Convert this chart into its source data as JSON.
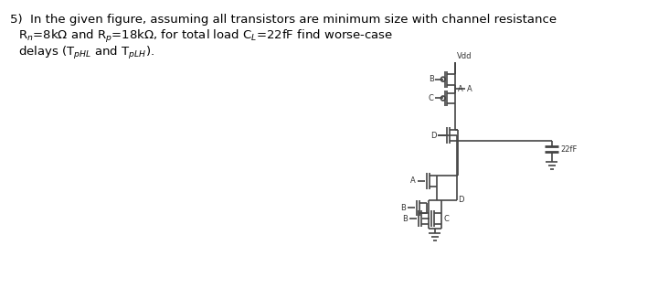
{
  "bg_color": "#ffffff",
  "circuit_color": "#444444",
  "text_color": "#333333",
  "capacitor_label": "22fF",
  "vdd_label": "Vdd",
  "line1": "5)  In the given figure, assuming all transistors are minimum size with channel resistance",
  "line2": "R$_n$=8k$\\Omega$ and R$_p$=18k$\\Omega$, for total load C$_L$=22fF find worse-case",
  "line3": "delays (T$_{pHL}$ and T$_{pLH}$).",
  "font_size": 9.5,
  "lw": 1.2
}
